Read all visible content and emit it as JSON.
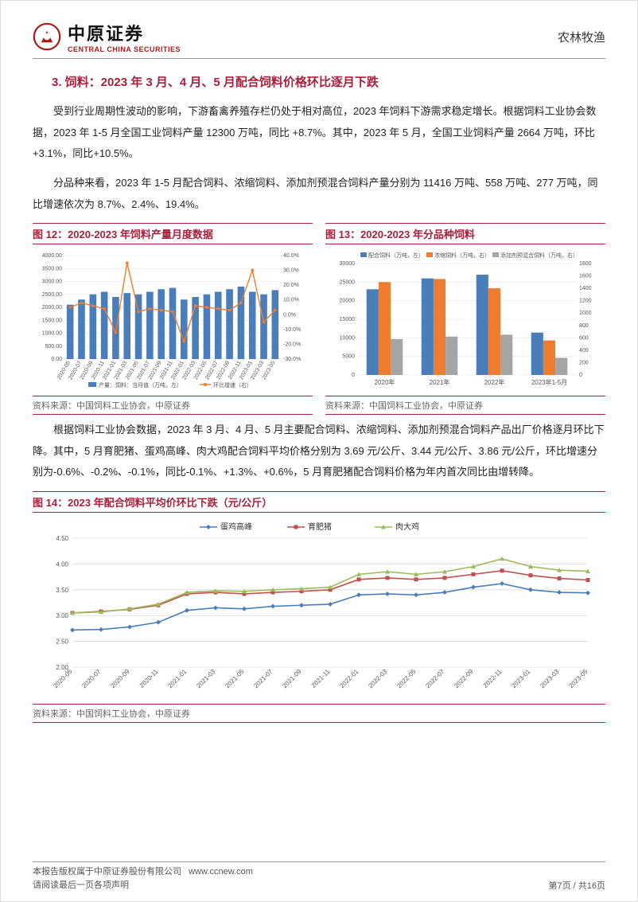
{
  "header": {
    "logo_cn": "中原证券",
    "logo_en": "CENTRAL CHINA SECURITIES",
    "category": "农林牧渔"
  },
  "section": {
    "title": "3. 饲料：2023 年 3 月、4 月、5 月配合饲料价格环比逐月下跌"
  },
  "para1": "受到行业周期性波动的影响，下游畜禽养殖存栏仍处于相对高位，2023 年饲料下游需求稳定增长。根据饲料工业协会数据，2023 年 1-5 月全国工业饲料产量 12300 万吨，同比 +8.7%。其中，2023 年 5 月，全国工业饲料产量 2664 万吨，环比+3.1%，同比+10.5%。",
  "para2": "分品种来看，2023 年 1-5 月配合饲料、浓缩饲料、添加剂预混合饲料产量分别为 11416 万吨、558 万吨、277 万吨，同比增速依次为 8.7%、2.4%、19.4%。",
  "chart12": {
    "type": "bar+line",
    "title": "图 12：2020-2023 年饲料产量月度数据",
    "source": "资料来源：中国饲料工业协会，中原证券",
    "legend_bar": "产量：饲料：当月值（万吨，左）",
    "legend_line": "环比增速（右）",
    "categories": [
      "2020-05",
      "2020-07",
      "2020-09",
      "2020-11",
      "2021-01",
      "2021-03",
      "2021-05",
      "2021-07",
      "2021-09",
      "2021-11",
      "2022-01",
      "2022-03",
      "2022-05",
      "2022-07",
      "2022-09",
      "2022-11",
      "2023-01",
      "2023-03",
      "2023-05"
    ],
    "bar_values": [
      2100,
      2300,
      2500,
      2600,
      2400,
      2550,
      2500,
      2600,
      2700,
      2750,
      2300,
      2400,
      2500,
      2600,
      2700,
      2800,
      2600,
      2500,
      2664
    ],
    "line_values": [
      5,
      8,
      6,
      4,
      -12,
      35,
      2,
      4,
      3,
      2,
      -18,
      6,
      5,
      4,
      3,
      8,
      30,
      -5,
      3.1
    ],
    "y1_range": [
      0,
      4000
    ],
    "y1_step": 500,
    "y2_range": [
      -30,
      40
    ],
    "y2_step": 10,
    "bar_color": "#4a7ebb",
    "line_color": "#ed7d31",
    "bg_color": "#ffffff",
    "grid_color": "#e0e0e0",
    "label_fontsize": 7,
    "axis_fontsize": 7
  },
  "chart13": {
    "type": "grouped-bar",
    "title": "图 13：2020-2023 年分品种饲料",
    "source": "资料来源：中国饲料工业协会，中原证券",
    "categories": [
      "2020年",
      "2021年",
      "2022年",
      "2023年1-5月"
    ],
    "series": [
      {
        "name": "配合饲料（万吨，左）",
        "axis": "left",
        "color": "#4a7ebb",
        "values": [
          23070,
          26000,
          27000,
          11416
        ]
      },
      {
        "name": "浓缩饲料（万吨，右）",
        "axis": "right",
        "color": "#ed7d31",
        "values": [
          1500,
          1550,
          1400,
          558
        ]
      },
      {
        "name": "添加剂预混合饲料（万吨，右）",
        "axis": "right",
        "color": "#a5a5a5",
        "values": [
          580,
          620,
          650,
          277
        ]
      }
    ],
    "y1_range": [
      0,
      30000
    ],
    "y1_step": 5000,
    "y2_range": [
      0,
      1800
    ],
    "y2_step": 200,
    "bg_color": "#ffffff",
    "grid_color": "#e0e0e0",
    "label_fontsize": 7,
    "legend_fontsize": 7
  },
  "para3": "根据饲料工业协会数据，2023 年 3 月、4 月、5 月主要配合饲料、浓缩饲料、添加剂预混合饲料产品出厂价格逐月环比下降。其中，5 月育肥猪、蛋鸡高峰、肉大鸡配合饲料平均价格分别为 3.69 元/公斤、3.44 元/公斤、3.86 元/公斤，环比增速分别为-0.6%、-0.2%、-0.1%，同比-0.1%、+1.3%、+0.6%，5 月育肥猪配合饲料价格为年内首次同比由增转降。",
  "chart14": {
    "type": "line",
    "title": "图 14：2023 年配合饲料平均价环比下跌（元/公斤）",
    "source": "资料来源：中国饲料工业协会，中原证券",
    "categories": [
      "2020-05",
      "2020-07",
      "2020-09",
      "2020-11",
      "2021-01",
      "2021-03",
      "2021-05",
      "2021-07",
      "2021-09",
      "2021-11",
      "2022-01",
      "2022-03",
      "2022-05",
      "2022-07",
      "2022-09",
      "2022-11",
      "2023-01",
      "2023-03",
      "2023-05"
    ],
    "series": [
      {
        "name": "蛋鸡高峰",
        "color": "#4a7ebb",
        "marker": "diamond",
        "values": [
          2.72,
          2.73,
          2.78,
          2.87,
          3.1,
          3.15,
          3.13,
          3.18,
          3.2,
          3.22,
          3.4,
          3.42,
          3.4,
          3.45,
          3.55,
          3.62,
          3.5,
          3.45,
          3.44
        ]
      },
      {
        "name": "育肥猪",
        "color": "#c0504d",
        "marker": "square",
        "values": [
          3.05,
          3.08,
          3.12,
          3.2,
          3.42,
          3.45,
          3.42,
          3.45,
          3.47,
          3.5,
          3.7,
          3.73,
          3.7,
          3.73,
          3.8,
          3.87,
          3.78,
          3.72,
          3.69
        ]
      },
      {
        "name": "肉大鸡",
        "color": "#9bbb59",
        "marker": "triangle",
        "values": [
          3.05,
          3.07,
          3.13,
          3.22,
          3.45,
          3.48,
          3.47,
          3.5,
          3.52,
          3.55,
          3.8,
          3.85,
          3.8,
          3.85,
          3.95,
          4.1,
          3.95,
          3.88,
          3.86
        ]
      }
    ],
    "y_range": [
      2.0,
      4.5
    ],
    "y_step": 0.5,
    "bg_color": "#ffffff",
    "grid_color": "#d0d0d0",
    "label_fontsize": 8,
    "legend_fontsize": 10
  },
  "footer": {
    "copyright": "本报告版权属于中原证券股份有限公司",
    "url": "www.ccnew.com",
    "disclaimer": "请阅读最后一页各项声明",
    "page": "第7页  /  共16页"
  }
}
